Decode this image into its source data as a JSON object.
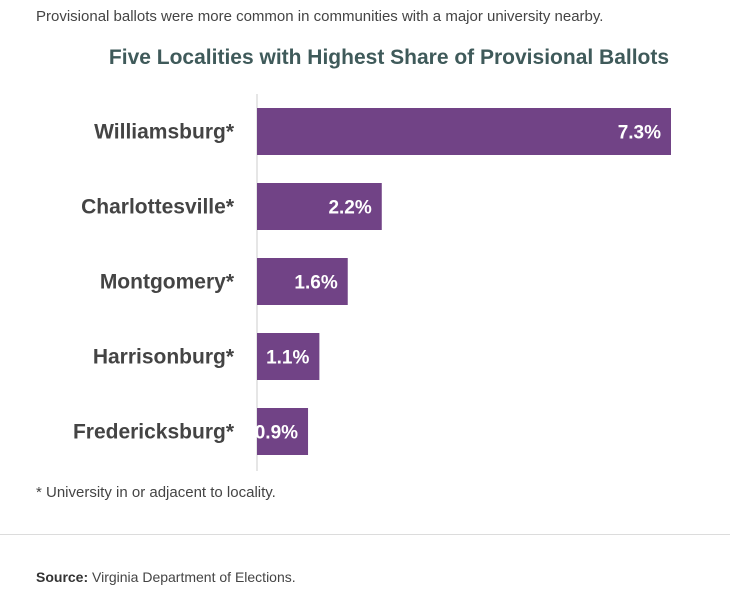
{
  "subtitle": "Provisional ballots were more common in communities with a major university nearby.",
  "footnote": "* University in or adjacent to locality.",
  "source": {
    "label": "Source:",
    "text": "Virginia Department of Elections."
  },
  "colors": {
    "bar": "#714386",
    "axis": "#cccccc",
    "title": "#3f5a5a"
  },
  "chart_data": {
    "type": "bar",
    "orientation": "horizontal",
    "title": "Five Localities with Highest Share of Provisional Ballots",
    "categories": [
      "Williamsburg*",
      "Charlottesville*",
      "Montgomery*",
      "Harrisonburg*",
      "Fredericksburg*"
    ],
    "values": [
      7.3,
      2.2,
      1.6,
      1.1,
      0.9
    ],
    "value_labels": [
      "7.3%",
      "2.2%",
      "1.6%",
      "1.1%",
      "0.9%"
    ],
    "xlim": [
      0,
      7.3
    ],
    "grid": false,
    "legend": false
  }
}
